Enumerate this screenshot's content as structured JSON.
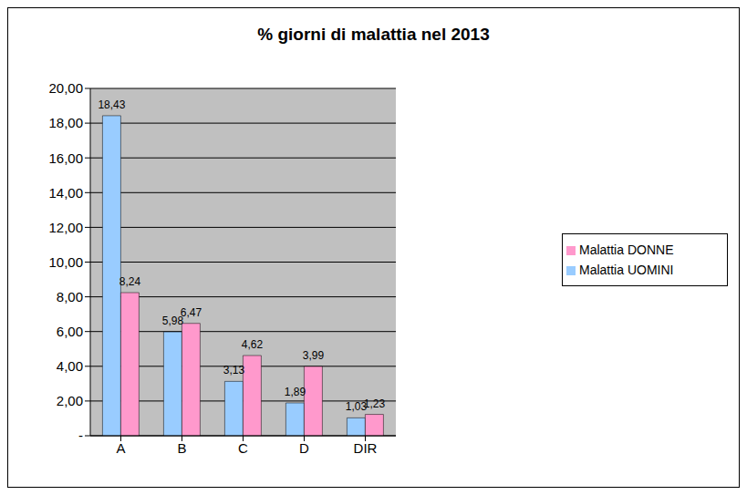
{
  "chart_data": {
    "type": "bar",
    "title": "% giorni di malattia nel 2013",
    "categories": [
      "A",
      "B",
      "C",
      "D",
      "DIR"
    ],
    "series": [
      {
        "name": "Malattia UOMINI",
        "color": "#99ccff",
        "values": [
          18.43,
          5.98,
          3.13,
          1.89,
          1.03
        ],
        "value_labels": [
          "18,43",
          "5,98",
          "3,13",
          "1,89",
          "1,03"
        ]
      },
      {
        "name": "Malattia DONNE",
        "color": "#ff99cc",
        "values": [
          8.24,
          6.47,
          4.62,
          3.99,
          1.23
        ],
        "value_labels": [
          "8,24",
          "6,47",
          "4,62",
          "3,99",
          "1,23"
        ]
      }
    ],
    "ylim": [
      0,
      20
    ],
    "yticks": [
      {
        "value": 0,
        "label": "-"
      },
      {
        "value": 2,
        "label": "2,00"
      },
      {
        "value": 4,
        "label": "4,00"
      },
      {
        "value": 6,
        "label": "6,00"
      },
      {
        "value": 8,
        "label": "8,00"
      },
      {
        "value": 10,
        "label": "10,00"
      },
      {
        "value": 12,
        "label": "12,00"
      },
      {
        "value": 14,
        "label": "14,00"
      },
      {
        "value": 16,
        "label": "16,00"
      },
      {
        "value": 18,
        "label": "18,00"
      },
      {
        "value": 20,
        "label": "20,00"
      }
    ],
    "grid": true,
    "legend": "right",
    "data_labels": true
  }
}
